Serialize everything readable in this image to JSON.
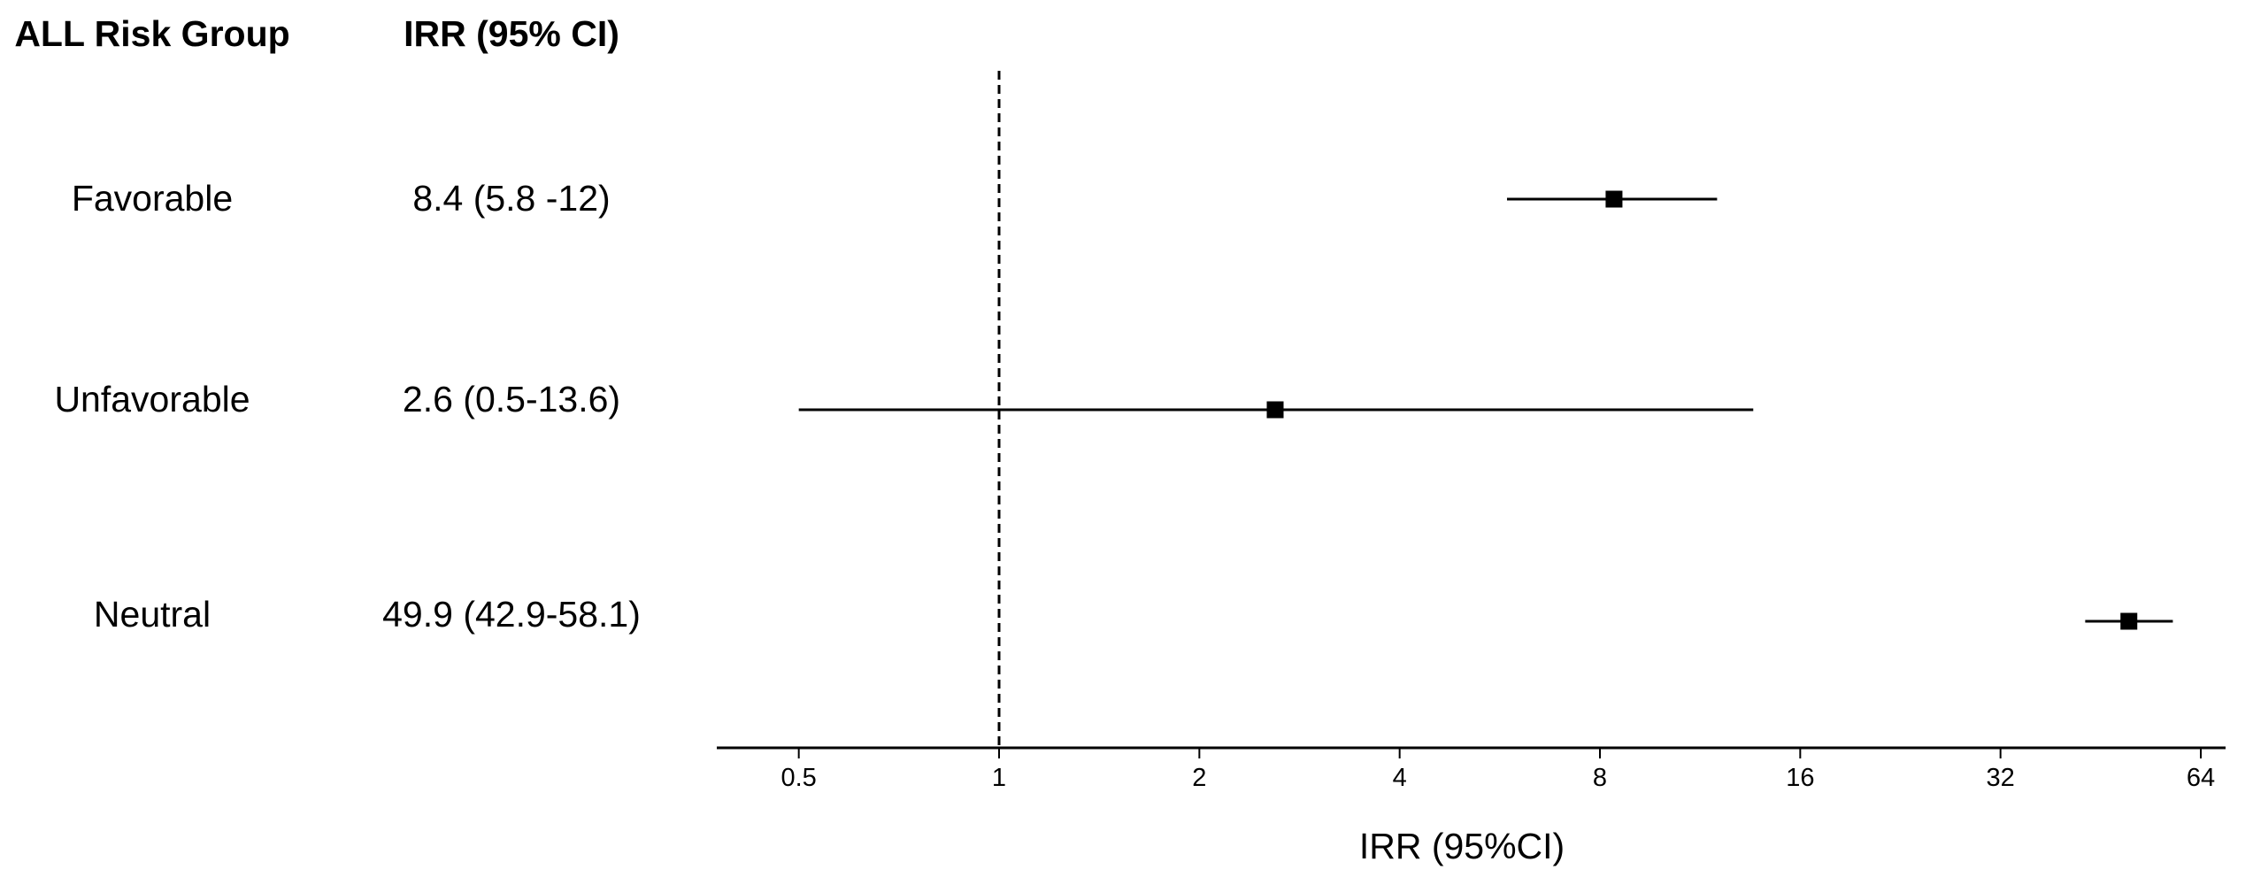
{
  "chart_data": {
    "type": "forest",
    "headers": {
      "group": "ALL Risk Group",
      "estimate": "IRR (95% CI)"
    },
    "rows": [
      {
        "group": "Favorable",
        "label": "8.4 (5.8 -12)",
        "estimate": 8.4,
        "lower": 5.8,
        "upper": 12
      },
      {
        "group": "Unfavorable",
        "label": "2.6 (0.5-13.6)",
        "estimate": 2.6,
        "lower": 0.5,
        "upper": 13.6
      },
      {
        "group": "Neutral",
        "label": "49.9 (42.9-58.1)",
        "estimate": 49.9,
        "lower": 42.9,
        "upper": 58.1
      }
    ],
    "x_axis": {
      "scale": "log2",
      "label": "IRR (95%CI)",
      "ticks": [
        0.5,
        1,
        2,
        4,
        8,
        16,
        32,
        64
      ],
      "tick_labels": [
        "0.5",
        "1",
        "2",
        "4",
        "8",
        "16",
        "32",
        "64"
      ],
      "reference_line": 1
    }
  }
}
